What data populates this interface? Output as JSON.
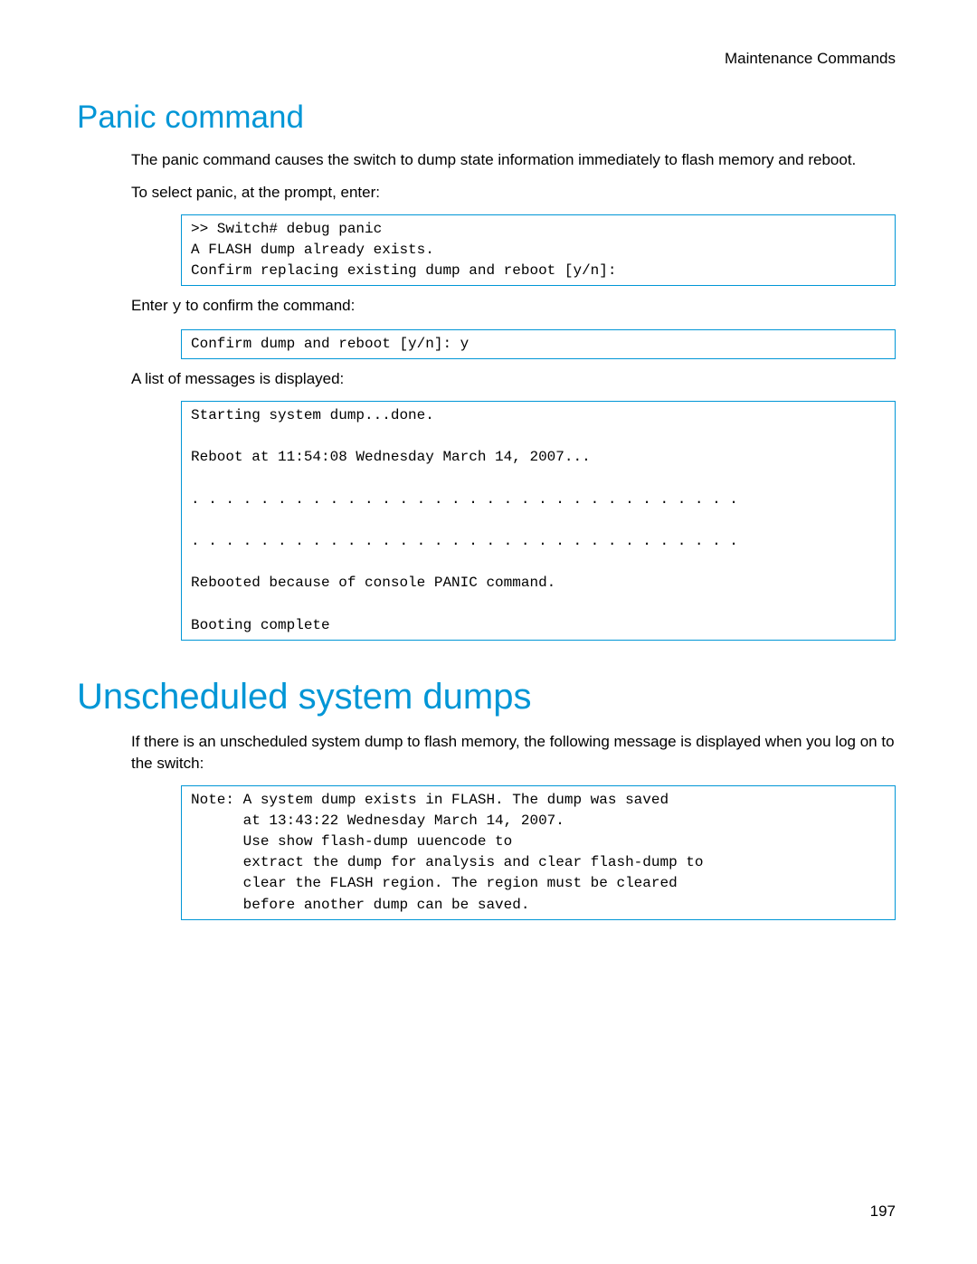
{
  "colors": {
    "heading": "#0096d6",
    "code_border": "#0096d6",
    "text": "#000000",
    "background": "#ffffff"
  },
  "typography": {
    "body_font": "Arial",
    "code_font": "Courier New",
    "h1_size_pt": 26,
    "h1_large_size_pt": 30,
    "body_size_pt": 13,
    "code_size_pt": 12
  },
  "header": {
    "right_text": "Maintenance Commands"
  },
  "section1": {
    "title": "Panic command",
    "para1": "The panic command causes the switch to dump state information immediately to flash memory and reboot.",
    "para2": "To select panic, at the prompt, enter:",
    "code1": ">> Switch# debug panic\nA FLASH dump already exists.\nConfirm replacing existing dump and reboot [y/n]:",
    "para3_pre": "Enter ",
    "para3_code": "y",
    "para3_post": " to confirm the command:",
    "code2": "Confirm dump and reboot [y/n]: y",
    "para4": "A list of messages is displayed:",
    "code3": "Starting system dump...done.\n\nReboot at 11:54:08 Wednesday March 14, 2007...\n\n. . . . . . . . . . . . . . . . . . . . . . . . . . . . . . . .\n\n. . . . . . . . . . . . . . . . . . . . . . . . . . . . . . . .\n\nRebooted because of console PANIC command.\n\nBooting complete"
  },
  "section2": {
    "title": "Unscheduled system dumps",
    "para1": "If there is an unscheduled system dump to flash memory, the following message is displayed when you log on to the switch:",
    "code1": "Note: A system dump exists in FLASH. The dump was saved\n      at 13:43:22 Wednesday March 14, 2007.\n      Use show flash-dump uuencode to\n      extract the dump for analysis and clear flash-dump to\n      clear the FLASH region. The region must be cleared\n      before another dump can be saved."
  },
  "footer": {
    "page_number": "197"
  }
}
